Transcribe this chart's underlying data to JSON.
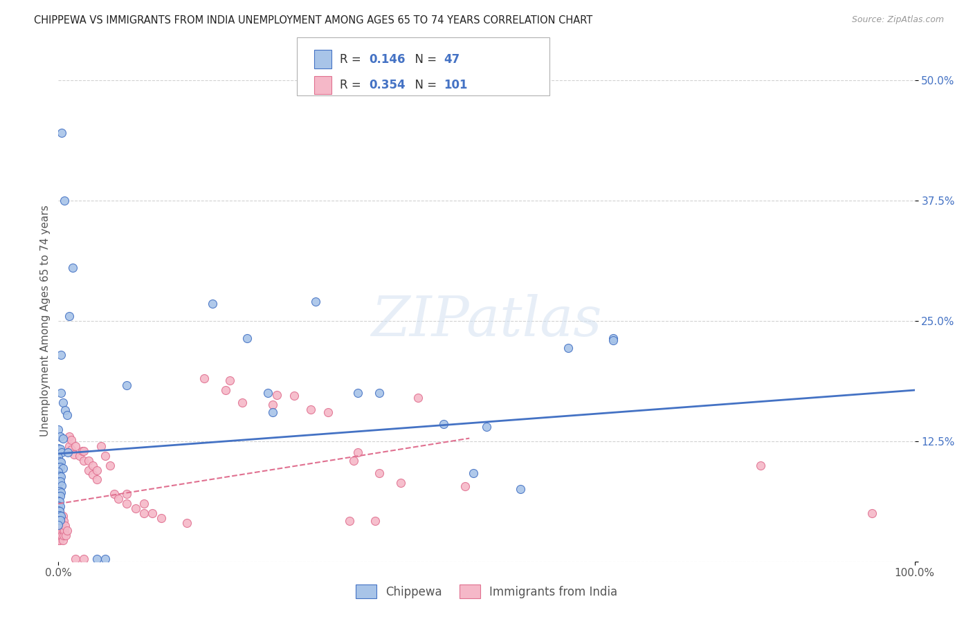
{
  "title": "CHIPPEWA VS IMMIGRANTS FROM INDIA UNEMPLOYMENT AMONG AGES 65 TO 74 YEARS CORRELATION CHART",
  "source": "Source: ZipAtlas.com",
  "ylabel": "Unemployment Among Ages 65 to 74 years",
  "xlim": [
    0,
    1.0
  ],
  "ylim": [
    0,
    0.5
  ],
  "yticks": [
    0.0,
    0.125,
    0.25,
    0.375,
    0.5
  ],
  "yticklabels": [
    "",
    "12.5%",
    "25.0%",
    "37.5%",
    "50.0%"
  ],
  "chippewa_R": "0.146",
  "chippewa_N": "47",
  "india_R": "0.354",
  "india_N": "101",
  "chippewa_color": "#a8c4e8",
  "india_color": "#f5b8c8",
  "chippewa_line_color": "#4472c4",
  "india_line_color": "#e07090",
  "watermark_color": "#d0dff0",
  "chippewa_line": [
    0.0,
    1.0,
    0.112,
    0.178
  ],
  "india_line": [
    0.0,
    0.48,
    0.06,
    0.128
  ],
  "chippewa_points": [
    [
      0.004,
      0.445
    ],
    [
      0.007,
      0.375
    ],
    [
      0.017,
      0.305
    ],
    [
      0.013,
      0.255
    ],
    [
      0.003,
      0.215
    ],
    [
      0.003,
      0.175
    ],
    [
      0.005,
      0.165
    ],
    [
      0.008,
      0.157
    ],
    [
      0.01,
      0.152
    ],
    [
      0.0,
      0.137
    ],
    [
      0.002,
      0.13
    ],
    [
      0.005,
      0.128
    ],
    [
      0.0,
      0.118
    ],
    [
      0.002,
      0.117
    ],
    [
      0.004,
      0.113
    ],
    [
      0.011,
      0.113
    ],
    [
      0.0,
      0.108
    ],
    [
      0.001,
      0.104
    ],
    [
      0.003,
      0.103
    ],
    [
      0.0,
      0.098
    ],
    [
      0.002,
      0.098
    ],
    [
      0.005,
      0.097
    ],
    [
      0.0,
      0.093
    ],
    [
      0.001,
      0.089
    ],
    [
      0.003,
      0.088
    ],
    [
      0.0,
      0.083
    ],
    [
      0.002,
      0.083
    ],
    [
      0.004,
      0.079
    ],
    [
      0.0,
      0.073
    ],
    [
      0.001,
      0.073
    ],
    [
      0.003,
      0.072
    ],
    [
      0.0,
      0.068
    ],
    [
      0.002,
      0.068
    ],
    [
      0.0,
      0.063
    ],
    [
      0.001,
      0.062
    ],
    [
      0.0,
      0.058
    ],
    [
      0.002,
      0.057
    ],
    [
      0.0,
      0.053
    ],
    [
      0.001,
      0.052
    ],
    [
      0.0,
      0.048
    ],
    [
      0.001,
      0.048
    ],
    [
      0.003,
      0.047
    ],
    [
      0.0,
      0.043
    ],
    [
      0.002,
      0.043
    ],
    [
      0.0,
      0.038
    ],
    [
      0.045,
      0.003
    ],
    [
      0.055,
      0.003
    ],
    [
      0.18,
      0.268
    ],
    [
      0.22,
      0.232
    ],
    [
      0.245,
      0.175
    ],
    [
      0.25,
      0.155
    ],
    [
      0.3,
      0.27
    ],
    [
      0.35,
      0.175
    ],
    [
      0.375,
      0.175
    ],
    [
      0.45,
      0.143
    ],
    [
      0.5,
      0.14
    ],
    [
      0.485,
      0.092
    ],
    [
      0.54,
      0.075
    ],
    [
      0.595,
      0.222
    ],
    [
      0.648,
      0.232
    ],
    [
      0.648,
      0.23
    ],
    [
      0.08,
      0.183
    ]
  ],
  "india_points": [
    [
      0.0,
      0.022
    ],
    [
      0.0,
      0.028
    ],
    [
      0.0,
      0.033
    ],
    [
      0.0,
      0.038
    ],
    [
      0.0,
      0.043
    ],
    [
      0.0,
      0.048
    ],
    [
      0.0,
      0.053
    ],
    [
      0.0,
      0.057
    ],
    [
      0.001,
      0.022
    ],
    [
      0.001,
      0.032
    ],
    [
      0.001,
      0.042
    ],
    [
      0.001,
      0.052
    ],
    [
      0.002,
      0.027
    ],
    [
      0.002,
      0.037
    ],
    [
      0.002,
      0.047
    ],
    [
      0.003,
      0.032
    ],
    [
      0.003,
      0.042
    ],
    [
      0.004,
      0.027
    ],
    [
      0.004,
      0.037
    ],
    [
      0.005,
      0.022
    ],
    [
      0.005,
      0.032
    ],
    [
      0.005,
      0.047
    ],
    [
      0.006,
      0.027
    ],
    [
      0.006,
      0.042
    ],
    [
      0.007,
      0.032
    ],
    [
      0.008,
      0.037
    ],
    [
      0.009,
      0.027
    ],
    [
      0.01,
      0.032
    ],
    [
      0.013,
      0.12
    ],
    [
      0.013,
      0.13
    ],
    [
      0.015,
      0.116
    ],
    [
      0.015,
      0.126
    ],
    [
      0.018,
      0.111
    ],
    [
      0.02,
      0.12
    ],
    [
      0.025,
      0.11
    ],
    [
      0.028,
      0.115
    ],
    [
      0.03,
      0.105
    ],
    [
      0.03,
      0.115
    ],
    [
      0.035,
      0.095
    ],
    [
      0.035,
      0.105
    ],
    [
      0.04,
      0.09
    ],
    [
      0.04,
      0.1
    ],
    [
      0.045,
      0.085
    ],
    [
      0.045,
      0.095
    ],
    [
      0.05,
      0.12
    ],
    [
      0.055,
      0.11
    ],
    [
      0.06,
      0.1
    ],
    [
      0.065,
      0.07
    ],
    [
      0.07,
      0.065
    ],
    [
      0.08,
      0.06
    ],
    [
      0.08,
      0.07
    ],
    [
      0.09,
      0.055
    ],
    [
      0.1,
      0.05
    ],
    [
      0.1,
      0.06
    ],
    [
      0.11,
      0.05
    ],
    [
      0.12,
      0.045
    ],
    [
      0.15,
      0.04
    ],
    [
      0.17,
      0.19
    ],
    [
      0.195,
      0.178
    ],
    [
      0.2,
      0.188
    ],
    [
      0.215,
      0.165
    ],
    [
      0.25,
      0.163
    ],
    [
      0.255,
      0.173
    ],
    [
      0.275,
      0.172
    ],
    [
      0.295,
      0.158
    ],
    [
      0.315,
      0.155
    ],
    [
      0.345,
      0.105
    ],
    [
      0.35,
      0.113
    ],
    [
      0.375,
      0.092
    ],
    [
      0.4,
      0.082
    ],
    [
      0.42,
      0.17
    ],
    [
      0.475,
      0.078
    ],
    [
      0.34,
      0.042
    ],
    [
      0.37,
      0.042
    ],
    [
      0.82,
      0.1
    ],
    [
      0.95,
      0.05
    ],
    [
      0.02,
      0.003
    ],
    [
      0.03,
      0.003
    ]
  ]
}
